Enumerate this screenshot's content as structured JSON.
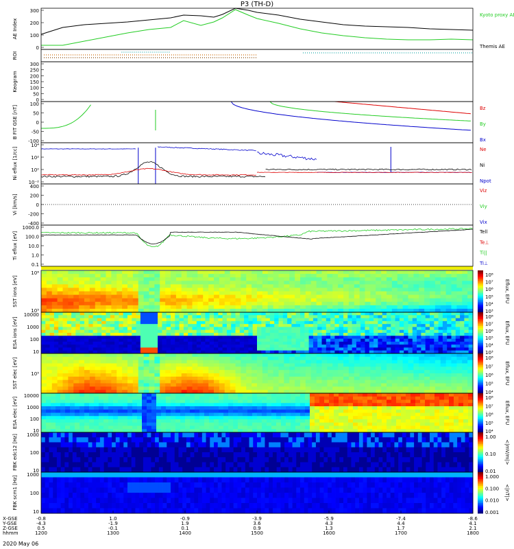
{
  "title": "P3 (TH-D)",
  "date_label": "2020 May 06",
  "chart_data": {
    "type": "line",
    "x_time_ticks": [
      "1200",
      "1300",
      "1400",
      "1500",
      "1600",
      "1700",
      "1800"
    ],
    "x_time_range": [
      "12:00",
      "18:00"
    ],
    "orbit_rows": [
      {
        "label": "X-GSE",
        "values": [
          "-0.8",
          "1.0",
          "-0.9",
          "-3.9",
          "-5.9",
          "-7.4",
          "-8.6"
        ]
      },
      {
        "label": "Y-GSE",
        "values": [
          "-4.3",
          "-1.9",
          "1.9",
          "3.6",
          "4.3",
          "4.4",
          "4.1"
        ]
      },
      {
        "label": "Z-GSE",
        "values": [
          "0.5",
          "-0.1",
          "0.1",
          "0.9",
          "1.3",
          "1.7",
          "2.1"
        ]
      },
      {
        "label": "hhmm",
        "values": [
          "1200",
          "1300",
          "1400",
          "1500",
          "1600",
          "1700",
          "1800"
        ]
      }
    ],
    "panels": [
      {
        "id": "ae",
        "ylabel": "AE Index",
        "ylim": [
          0,
          300
        ],
        "yticks": [
          "0",
          "100",
          "200",
          "300"
        ],
        "legend": [
          {
            "name": "Kyoto proxy AE",
            "color": "#22cc22"
          },
          {
            "name": "Themis AE",
            "color": "#000000"
          }
        ],
        "series": [
          {
            "name": "Themis AE",
            "color": "#000000",
            "x": [
              0,
              0.05,
              0.1,
              0.15,
              0.2,
              0.25,
              0.3,
              0.33,
              0.37,
              0.4,
              0.42,
              0.45,
              0.48,
              0.5,
              0.55,
              0.6,
              0.65,
              0.7,
              0.75,
              0.8,
              0.85,
              0.9,
              0.95,
              1.0
            ],
            "y": [
              110,
              160,
              180,
              190,
              200,
              215,
              230,
              250,
              245,
              235,
              255,
              300,
              285,
              270,
              250,
              220,
              200,
              180,
              170,
              165,
              160,
              150,
              145,
              140
            ]
          },
          {
            "name": "Kyoto proxy AE",
            "color": "#22cc22",
            "x": [
              0,
              0.05,
              0.1,
              0.15,
              0.2,
              0.25,
              0.3,
              0.33,
              0.37,
              0.4,
              0.42,
              0.45,
              0.48,
              0.5,
              0.55,
              0.6,
              0.65,
              0.7,
              0.75,
              0.8,
              0.85,
              0.9,
              0.95,
              1.0
            ],
            "y": [
              30,
              30,
              60,
              90,
              120,
              145,
              160,
              210,
              175,
              200,
              230,
              290,
              250,
              225,
              190,
              150,
              120,
              100,
              85,
              75,
              70,
              70,
              75,
              70
            ]
          }
        ]
      },
      {
        "id": "roi",
        "ylabel": "ROI"
      },
      {
        "id": "keogram",
        "ylabel": "Keogram",
        "yticks": [
          "0",
          "50",
          "100",
          "150",
          "200",
          "250",
          "300"
        ]
      },
      {
        "id": "bfit",
        "ylabel": "B FIT GSE [nT]",
        "ylim": [
          -100,
          100
        ],
        "yticks": [
          "-100",
          "-50",
          "0",
          "50",
          "100"
        ],
        "legend": [
          {
            "name": "Bz",
            "color": "#dd0000"
          },
          {
            "name": "By",
            "color": "#22cc22"
          },
          {
            "name": "Bx",
            "color": "#0000cc"
          }
        ]
      },
      {
        "id": "ni",
        "ylabel": "Ni eflux [1/cc]",
        "yticks": [
          "10⁻²",
          "10⁰",
          "10²",
          "10⁴"
        ],
        "legend": [
          {
            "name": "Ne",
            "color": "#dd0000"
          },
          {
            "name": "Ni",
            "color": "#000000"
          },
          {
            "name": "Npot",
            "color": "#0000cc"
          }
        ]
      },
      {
        "id": "vi",
        "ylabel": "Vi [km/s]",
        "ylim": [
          -400,
          400
        ],
        "yticks": [
          "-400",
          "-200",
          "0",
          "200",
          "400"
        ],
        "legend": [
          {
            "name": "Viz",
            "color": "#dd0000"
          },
          {
            "name": "Viy",
            "color": "#22cc22"
          },
          {
            "name": "Vix",
            "color": "#0000cc"
          }
        ]
      },
      {
        "id": "temp",
        "ylabel": "Ti eflux [eV]",
        "yticks": [
          "0.1",
          "1.0",
          "10.0",
          "100.0",
          "1000.0"
        ],
        "legend": [
          {
            "name": "Tell",
            "color": "#000000"
          },
          {
            "name": "Te⊥",
            "color": "#dd0000"
          },
          {
            "name": "Ti||",
            "color": "#22cc22"
          },
          {
            "name": "Ti⊥",
            "color": "#0000cc"
          }
        ]
      },
      {
        "id": "sst_i",
        "ylabel": "SST ions [eV]",
        "yticks": [
          "10⁵",
          "10⁶"
        ],
        "colorbar_label": "Eflux, EFU",
        "colorbar_ticks": [
          "10⁸",
          "10⁷",
          "10⁶",
          "10⁵",
          "10⁴",
          "10³"
        ]
      },
      {
        "id": "esa_i",
        "ylabel": "ESA ions [eV]",
        "yticks": [
          "10",
          "100",
          "1000",
          "10000"
        ],
        "colorbar_label": "Eflux, EFU",
        "colorbar_ticks": [
          "10⁸",
          "10⁷",
          "10⁶",
          "10⁵",
          "10⁴",
          "10³"
        ]
      },
      {
        "id": "sst_e",
        "ylabel": "SST elec [eV]",
        "yticks": [
          "10⁵"
        ],
        "colorbar_label": "Eflux, EFU",
        "colorbar_ticks": [
          "10⁸",
          "10⁷",
          "10⁶",
          "10⁵",
          "10⁴"
        ]
      },
      {
        "id": "esa_e",
        "ylabel": "ESA elec [eV]",
        "yticks": [
          "10",
          "100",
          "1000",
          "10000"
        ],
        "colorbar_label": "Eflux, EFU",
        "colorbar_ticks": [
          "10⁸",
          "10⁷",
          "10⁶",
          "10⁵",
          "10⁴"
        ]
      },
      {
        "id": "fbk_e",
        "ylabel": "FBK edc12 [Hz]",
        "yticks": [
          "10",
          "100",
          "1000"
        ],
        "colorbar_label": "<|mV/m|>",
        "colorbar_ticks": [
          "1.00",
          "0.10",
          "0.01"
        ]
      },
      {
        "id": "fbk_b",
        "ylabel": "FBK scm1 [Hz]",
        "yticks": [
          "10",
          "100",
          "1000"
        ],
        "colorbar_label": "<|nT|>",
        "colorbar_ticks": [
          "1.000",
          "0.100",
          "0.010",
          "0.001"
        ]
      }
    ]
  }
}
